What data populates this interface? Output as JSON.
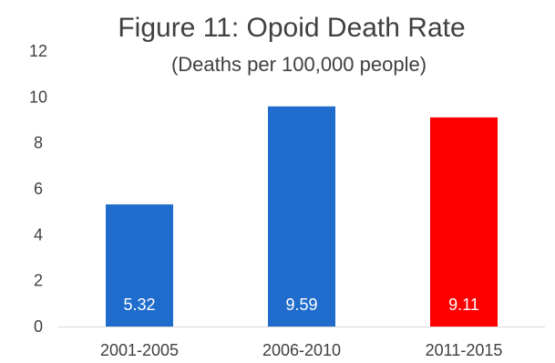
{
  "chart_data": {
    "type": "bar",
    "title": "Figure 11:  Opoid Death Rate",
    "subtitle": "(Deaths per 100,000 people)",
    "categories": [
      "2001-2005",
      "2006-2010",
      "2011-2015"
    ],
    "values": [
      5.32,
      9.59,
      9.11
    ],
    "data_labels": [
      "5.32",
      "9.59",
      "9.11"
    ],
    "bar_colors": [
      "#1f6ccc",
      "#1f6ccc",
      "#ff0000"
    ],
    "ylim": [
      0,
      12
    ],
    "yticks": [
      0,
      2,
      4,
      6,
      8,
      10,
      12
    ],
    "grid": false,
    "legend": "none",
    "xlabel": "",
    "ylabel": ""
  }
}
